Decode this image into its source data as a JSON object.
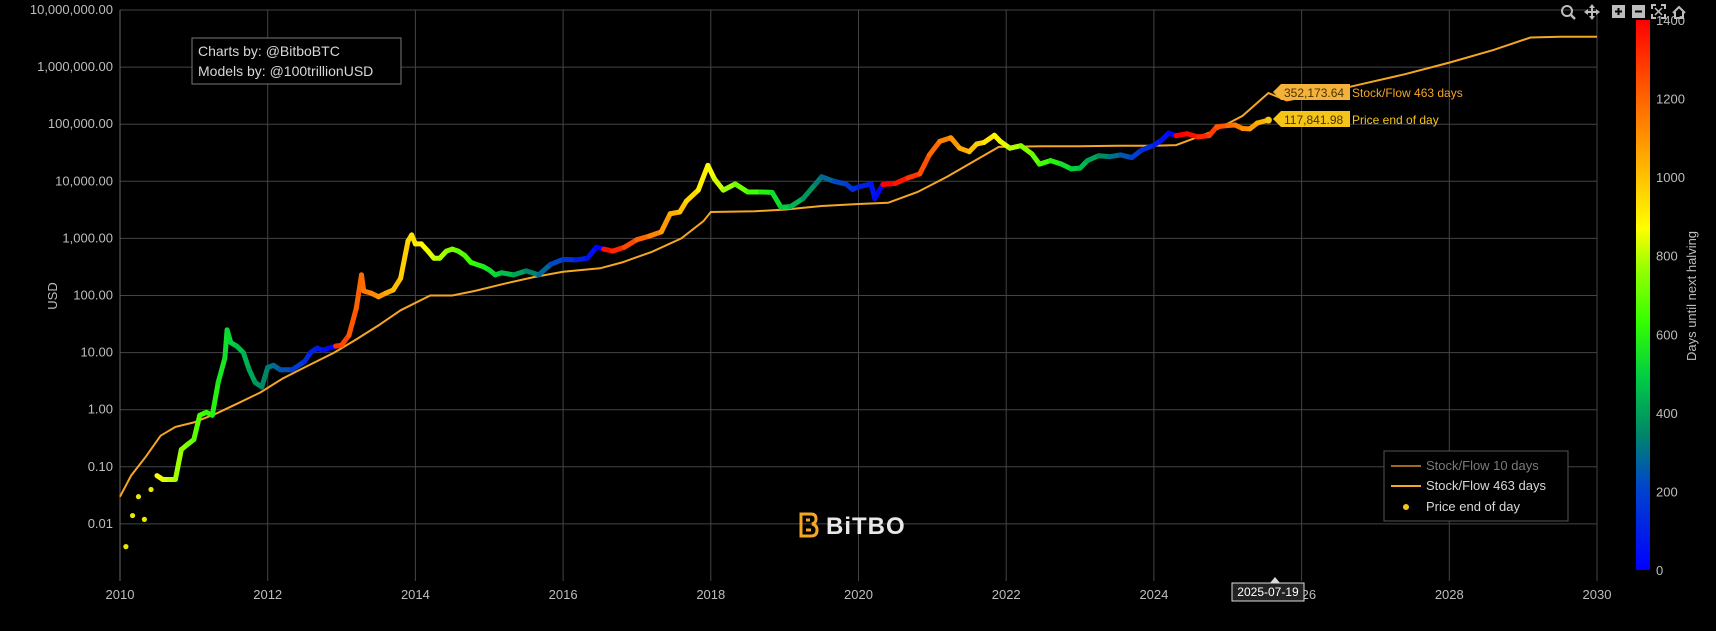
{
  "credits": {
    "line1": "Charts by: @BitboBTC",
    "line2": "Models by: @100trillionUSD"
  },
  "logo": {
    "text": "BiTBO",
    "color": "#f5a623"
  },
  "toolbar": {
    "icons": [
      "zoom-icon",
      "pan-icon",
      "zoom-in-icon",
      "zoom-out-icon",
      "autoscale-icon",
      "reset-axes-icon"
    ]
  },
  "hover": {
    "date_label": "2025-07-19",
    "sf_value": "352,173.64",
    "sf_label": "Stock/Flow 463 days",
    "price_value": "117,841.98",
    "price_label": "Price end of day"
  },
  "colors": {
    "sf10": "#a06a1c",
    "sf463": "#f5a623",
    "price_tag": "#f4c518",
    "sf_tag": "#f5b23a"
  },
  "chart_data": {
    "type": "scatter",
    "title": "",
    "xlabel": "",
    "ylabel": "USD",
    "yscale": "log",
    "xlim": [
      2010,
      2030
    ],
    "ylim": [
      0.001,
      10000000
    ],
    "x_ticks": [
      "2010",
      "2012",
      "2014",
      "2016",
      "2018",
      "2020",
      "2022",
      "2024",
      "2026",
      "2028",
      "2030"
    ],
    "y_ticks": [
      "10,000,000.00",
      "1,000,000.00",
      "100,000.00",
      "10,000.00",
      "1,000.00",
      "100.00",
      "10.00",
      "1.00",
      "0.10",
      "0.01"
    ],
    "colorbar": {
      "label": "Days until next halving",
      "range": [
        0,
        1400
      ],
      "ticks": [
        "0",
        "200",
        "400",
        "600",
        "800",
        "1000",
        "1200",
        "1400"
      ]
    },
    "legend": {
      "placement": "bottom-right",
      "entries": [
        "Stock/Flow 10 days",
        "Stock/Flow 463 days",
        "Price end of day"
      ]
    },
    "grid": true,
    "halvings": [
      2012.91,
      2016.52,
      2020.36,
      2024.3,
      2028.3
    ],
    "series": [
      {
        "name": "Stock/Flow 463 days",
        "points": [
          [
            2010.0,
            0.03
          ],
          [
            2010.15,
            0.07
          ],
          [
            2010.35,
            0.15
          ],
          [
            2010.55,
            0.35
          ],
          [
            2010.75,
            0.5
          ],
          [
            2011.0,
            0.6
          ],
          [
            2011.3,
            0.85
          ],
          [
            2011.6,
            1.3
          ],
          [
            2011.9,
            2.0
          ],
          [
            2012.2,
            3.5
          ],
          [
            2012.5,
            5.5
          ],
          [
            2012.9,
            10
          ],
          [
            2013.2,
            17
          ],
          [
            2013.5,
            30
          ],
          [
            2013.8,
            55
          ],
          [
            2014.2,
            100
          ],
          [
            2014.5,
            100
          ],
          [
            2014.8,
            120
          ],
          [
            2015.2,
            160
          ],
          [
            2015.6,
            210
          ],
          [
            2016.0,
            260
          ],
          [
            2016.5,
            300
          ],
          [
            2016.8,
            380
          ],
          [
            2017.2,
            580
          ],
          [
            2017.6,
            1000
          ],
          [
            2017.9,
            2000
          ],
          [
            2018.0,
            2900
          ],
          [
            2018.6,
            3000
          ],
          [
            2019.0,
            3200
          ],
          [
            2019.5,
            3700
          ],
          [
            2020.0,
            4000
          ],
          [
            2020.4,
            4200
          ],
          [
            2020.8,
            6500
          ],
          [
            2021.2,
            12000
          ],
          [
            2021.6,
            24000
          ],
          [
            2021.9,
            40000
          ],
          [
            2022.5,
            41000
          ],
          [
            2023.0,
            41000
          ],
          [
            2023.5,
            42000
          ],
          [
            2024.0,
            42000
          ],
          [
            2024.3,
            43000
          ],
          [
            2024.8,
            75000
          ],
          [
            2025.2,
            140000
          ],
          [
            2025.55,
            352173.64
          ],
          [
            2025.8,
            260000
          ],
          [
            2026.2,
            330000
          ],
          [
            2026.8,
            500000
          ],
          [
            2027.4,
            750000
          ],
          [
            2028.0,
            1200000
          ],
          [
            2028.6,
            2000000
          ],
          [
            2029.1,
            3300000
          ],
          [
            2029.5,
            3400000
          ],
          [
            2030.0,
            3400000
          ]
        ]
      },
      {
        "name": "Price end of day",
        "points": [
          [
            2010.08,
            0.004
          ],
          [
            2010.17,
            0.014
          ],
          [
            2010.25,
            0.03
          ],
          [
            2010.33,
            0.012
          ],
          [
            2010.42,
            0.04
          ],
          [
            2010.5,
            0.07
          ],
          [
            2010.58,
            0.06
          ],
          [
            2010.67,
            0.06
          ],
          [
            2010.75,
            0.06
          ],
          [
            2010.83,
            0.2
          ],
          [
            2010.92,
            0.25
          ],
          [
            2011.0,
            0.3
          ],
          [
            2011.08,
            0.8
          ],
          [
            2011.17,
            0.9
          ],
          [
            2011.25,
            0.8
          ],
          [
            2011.33,
            3.0
          ],
          [
            2011.42,
            8
          ],
          [
            2011.45,
            25
          ],
          [
            2011.5,
            15
          ],
          [
            2011.58,
            13
          ],
          [
            2011.67,
            10
          ],
          [
            2011.75,
            5
          ],
          [
            2011.83,
            3
          ],
          [
            2011.92,
            2.5
          ],
          [
            2012.0,
            5.5
          ],
          [
            2012.08,
            6
          ],
          [
            2012.17,
            5
          ],
          [
            2012.33,
            5
          ],
          [
            2012.5,
            7
          ],
          [
            2012.58,
            10
          ],
          [
            2012.67,
            12
          ],
          [
            2012.75,
            11
          ],
          [
            2012.83,
            12
          ],
          [
            2012.92,
            13
          ],
          [
            2013.0,
            13.5
          ],
          [
            2013.1,
            20
          ],
          [
            2013.2,
            60
          ],
          [
            2013.27,
            230
          ],
          [
            2013.3,
            120
          ],
          [
            2013.4,
            110
          ],
          [
            2013.5,
            95
          ],
          [
            2013.6,
            110
          ],
          [
            2013.7,
            125
          ],
          [
            2013.8,
            200
          ],
          [
            2013.9,
            900
          ],
          [
            2013.95,
            1150
          ],
          [
            2014.0,
            800
          ],
          [
            2014.08,
            800
          ],
          [
            2014.17,
            600
          ],
          [
            2014.25,
            450
          ],
          [
            2014.33,
            450
          ],
          [
            2014.42,
            600
          ],
          [
            2014.5,
            650
          ],
          [
            2014.58,
            600
          ],
          [
            2014.67,
            500
          ],
          [
            2014.75,
            380
          ],
          [
            2014.83,
            350
          ],
          [
            2014.92,
            320
          ],
          [
            2015.0,
            280
          ],
          [
            2015.08,
            230
          ],
          [
            2015.17,
            250
          ],
          [
            2015.33,
            230
          ],
          [
            2015.5,
            270
          ],
          [
            2015.67,
            230
          ],
          [
            2015.83,
            350
          ],
          [
            2016.0,
            430
          ],
          [
            2016.17,
            420
          ],
          [
            2016.33,
            450
          ],
          [
            2016.45,
            700
          ],
          [
            2016.55,
            650
          ],
          [
            2016.67,
            600
          ],
          [
            2016.83,
            700
          ],
          [
            2017.0,
            950
          ],
          [
            2017.17,
            1100
          ],
          [
            2017.33,
            1300
          ],
          [
            2017.45,
            2700
          ],
          [
            2017.58,
            2900
          ],
          [
            2017.67,
            4500
          ],
          [
            2017.83,
            7000
          ],
          [
            2017.96,
            19000
          ],
          [
            2018.05,
            11000
          ],
          [
            2018.17,
            7000
          ],
          [
            2018.33,
            9000
          ],
          [
            2018.5,
            6500
          ],
          [
            2018.67,
            6500
          ],
          [
            2018.83,
            6400
          ],
          [
            2018.95,
            3500
          ],
          [
            2019.08,
            3600
          ],
          [
            2019.25,
            5000
          ],
          [
            2019.42,
            9000
          ],
          [
            2019.5,
            12000
          ],
          [
            2019.67,
            10000
          ],
          [
            2019.83,
            9000
          ],
          [
            2019.92,
            7200
          ],
          [
            2020.0,
            8000
          ],
          [
            2020.17,
            9000
          ],
          [
            2020.22,
            5000
          ],
          [
            2020.33,
            8800
          ],
          [
            2020.5,
            9200
          ],
          [
            2020.67,
            11500
          ],
          [
            2020.83,
            13500
          ],
          [
            2020.96,
            29000
          ],
          [
            2021.1,
            50000
          ],
          [
            2021.25,
            58000
          ],
          [
            2021.37,
            38000
          ],
          [
            2021.5,
            33000
          ],
          [
            2021.6,
            45000
          ],
          [
            2021.7,
            48000
          ],
          [
            2021.84,
            64000
          ],
          [
            2021.92,
            50000
          ],
          [
            2022.05,
            38000
          ],
          [
            2022.2,
            42000
          ],
          [
            2022.35,
            30000
          ],
          [
            2022.45,
            20000
          ],
          [
            2022.6,
            23000
          ],
          [
            2022.75,
            20000
          ],
          [
            2022.88,
            16500
          ],
          [
            2023.0,
            17000
          ],
          [
            2023.1,
            23000
          ],
          [
            2023.25,
            28000
          ],
          [
            2023.4,
            27000
          ],
          [
            2023.55,
            29000
          ],
          [
            2023.7,
            26000
          ],
          [
            2023.83,
            35000
          ],
          [
            2024.0,
            43000
          ],
          [
            2024.1,
            52000
          ],
          [
            2024.2,
            70000
          ],
          [
            2024.3,
            63000
          ],
          [
            2024.45,
            68000
          ],
          [
            2024.6,
            60000
          ],
          [
            2024.75,
            63000
          ],
          [
            2024.85,
            90000
          ],
          [
            2025.0,
            95000
          ],
          [
            2025.1,
            97000
          ],
          [
            2025.2,
            84000
          ],
          [
            2025.3,
            83000
          ],
          [
            2025.4,
            105000
          ],
          [
            2025.55,
            117841.98
          ]
        ]
      }
    ]
  }
}
